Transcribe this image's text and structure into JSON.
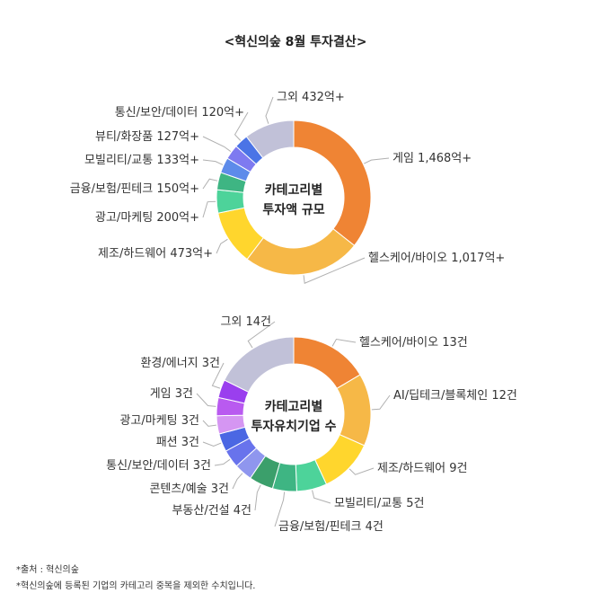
{
  "title": "<혁신의숲 8월 투자결산>",
  "chart_data": [
    {
      "type": "pie",
      "title": "카테고리별\n투자액 규모",
      "slices": [
        {
          "label": "게임 1,468억+",
          "value": 1468,
          "color": "#EF8434"
        },
        {
          "label": "헬스케어/바이오 1,017억+",
          "value": 1017,
          "color": "#F6B847"
        },
        {
          "label": "제조/하드웨어 473억+",
          "value": 473,
          "color": "#FFD62D"
        },
        {
          "label": "광고/마케팅 200억+",
          "value": 200,
          "color": "#4DD39A"
        },
        {
          "label": "금융/보험/핀테크 150억+",
          "value": 150,
          "color": "#3EB583"
        },
        {
          "label": "모빌리티/교통 133억+",
          "value": 133,
          "color": "#5D8BEA"
        },
        {
          "label": "뷰티/화장품 127억+",
          "value": 127,
          "color": "#7E7AF0"
        },
        {
          "label": "통신/보안/데이터 120억+",
          "value": 120,
          "color": "#4B74E6"
        },
        {
          "label": "그외 432억+",
          "value": 432,
          "color": "#C1C1D8"
        }
      ]
    },
    {
      "type": "pie",
      "title": "카테고리별\n투자유치기업 수",
      "slices": [
        {
          "label": "헬스케어/바이오 13건",
          "value": 13,
          "color": "#EF8434"
        },
        {
          "label": "AI/딥테크/블록체인 12건",
          "value": 12,
          "color": "#F6B847"
        },
        {
          "label": "제조/하드웨어 9건",
          "value": 9,
          "color": "#FFD62D"
        },
        {
          "label": "모빌리티/교통 5건",
          "value": 5,
          "color": "#4DD39A"
        },
        {
          "label": "금융/보험/핀테크 4건",
          "value": 4,
          "color": "#3EB583"
        },
        {
          "label": "부동산/건설 4건",
          "value": 4,
          "color": "#3B9F6B"
        },
        {
          "label": "콘텐츠/예술 3건",
          "value": 3,
          "color": "#8F96EE"
        },
        {
          "label": "통신/보안/데이터 3건",
          "value": 3,
          "color": "#6873EC"
        },
        {
          "label": "패션 3건",
          "value": 3,
          "color": "#4B67E3"
        },
        {
          "label": "광고/마케팅 3건",
          "value": 3,
          "color": "#D596F2"
        },
        {
          "label": "게임 3건",
          "value": 3,
          "color": "#B95AF0"
        },
        {
          "label": "환경/에너지 3건",
          "value": 3,
          "color": "#9A3FEE"
        },
        {
          "label": "그외 14건",
          "value": 14,
          "color": "#C1C1D8"
        }
      ]
    }
  ],
  "notes": [
    "*출처 : 혁신의숲",
    "*혁신의숲에 등록된 기업의 카테고리 중복을 제외한 수치입니다."
  ]
}
